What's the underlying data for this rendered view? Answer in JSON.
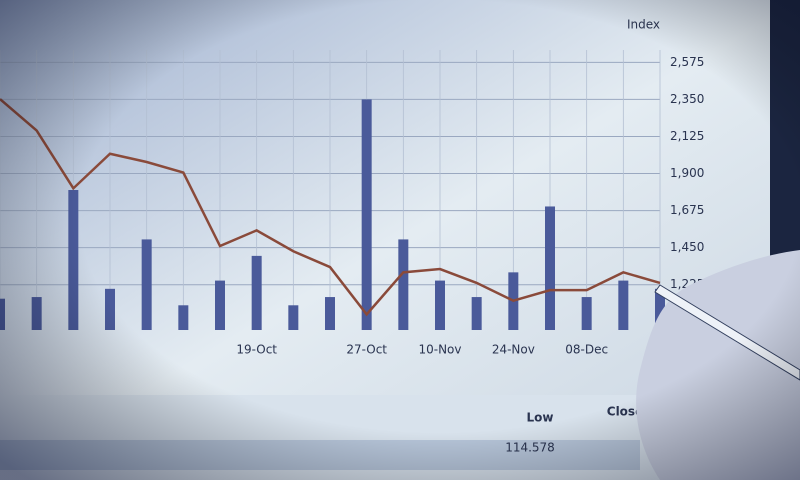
{
  "chart_data": {
    "type": "line",
    "y_label": "Index",
    "categories": [
      null,
      null,
      null,
      null,
      null,
      null,
      null,
      "19-Oct",
      null,
      null,
      "27-Oct",
      null,
      "10-Nov",
      null,
      "24-Nov",
      null,
      "08-Dec",
      null,
      null
    ],
    "series": [
      {
        "color": "#8a4a3a",
        "values": [
          2352,
          2161,
          1810,
          2020,
          1970,
          1906,
          1460,
          1555,
          1428,
          1332,
          1045,
          1300,
          1320,
          1236,
          1128,
          1192,
          1192,
          1300,
          1236
        ]
      }
    ],
    "bars": {
      "color": "#4a5a9a",
      "values": [
        1140,
        1150,
        1800,
        1200,
        1500,
        1100,
        1250,
        1400,
        1100,
        1150,
        2350,
        1500,
        1250,
        1150,
        1300,
        1700,
        1150,
        1250,
        1200
      ]
    },
    "ylim": [
      950,
      2650
    ],
    "yticks": [
      {
        "value": 1225,
        "label": "1,225"
      },
      {
        "value": 1450,
        "label": "1,450"
      },
      {
        "value": 1675,
        "label": "1,675"
      },
      {
        "value": 1900,
        "label": "1,900"
      },
      {
        "value": 2125,
        "label": "2,125"
      },
      {
        "value": 2350,
        "label": "2,350"
      },
      {
        "value": 2575,
        "label": "2,575"
      }
    ],
    "grid": true
  },
  "table": {
    "headers": [
      "Low",
      "Close"
    ],
    "rows": [
      [
        "114.578"
      ]
    ]
  }
}
